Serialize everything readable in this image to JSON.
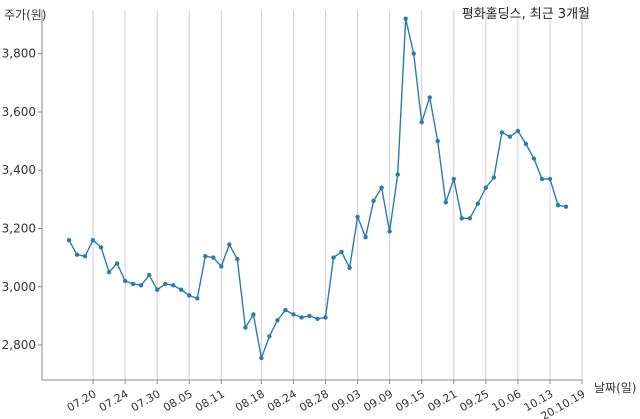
{
  "chart_data": {
    "type": "line",
    "title": "평화홀딩스, 최근 3개월",
    "xlabel": "날짜(일)",
    "ylabel": "주가(원)",
    "ylim": [
      2680,
      3950
    ],
    "yticks": [
      2800,
      3000,
      3200,
      3400,
      3600,
      3800
    ],
    "ytick_labels": [
      "2,800",
      "3,000",
      "3,200",
      "3,400",
      "3,600",
      "3,800"
    ],
    "grid": "x-vertical",
    "x_tick_labels": [
      "07.20",
      "07.24",
      "07.30",
      "08.05",
      "08.11",
      "08.18",
      "08.24",
      "08.28",
      "09.03",
      "09.09",
      "09.15",
      "09.21",
      "09.25",
      "10.06",
      "10.13",
      "20.10.19"
    ],
    "x_tick_positions": [
      3,
      7,
      11,
      15,
      19,
      24,
      28,
      32,
      36,
      40,
      44,
      48,
      52,
      56,
      60,
      64
    ],
    "series": [
      {
        "color": "#2b7bb0",
        "values": [
          3160,
          3110,
          3105,
          3160,
          3135,
          3050,
          3080,
          3020,
          3010,
          3005,
          3040,
          2990,
          3010,
          3005,
          2990,
          2970,
          2960,
          3105,
          3100,
          3070,
          3145,
          3095,
          2860,
          2905,
          2755,
          2830,
          2885,
          2920,
          2905,
          2895,
          2900,
          2890,
          2895,
          3100,
          3120,
          3065,
          3240,
          3170,
          3295,
          3340,
          3190,
          3385,
          3920,
          3800,
          3565,
          3650,
          3500,
          3290,
          3370,
          3235,
          3235,
          3285,
          3340,
          3375,
          3530,
          3515,
          3535,
          3490,
          3440,
          3370,
          3370,
          3280,
          3275
        ]
      }
    ]
  }
}
